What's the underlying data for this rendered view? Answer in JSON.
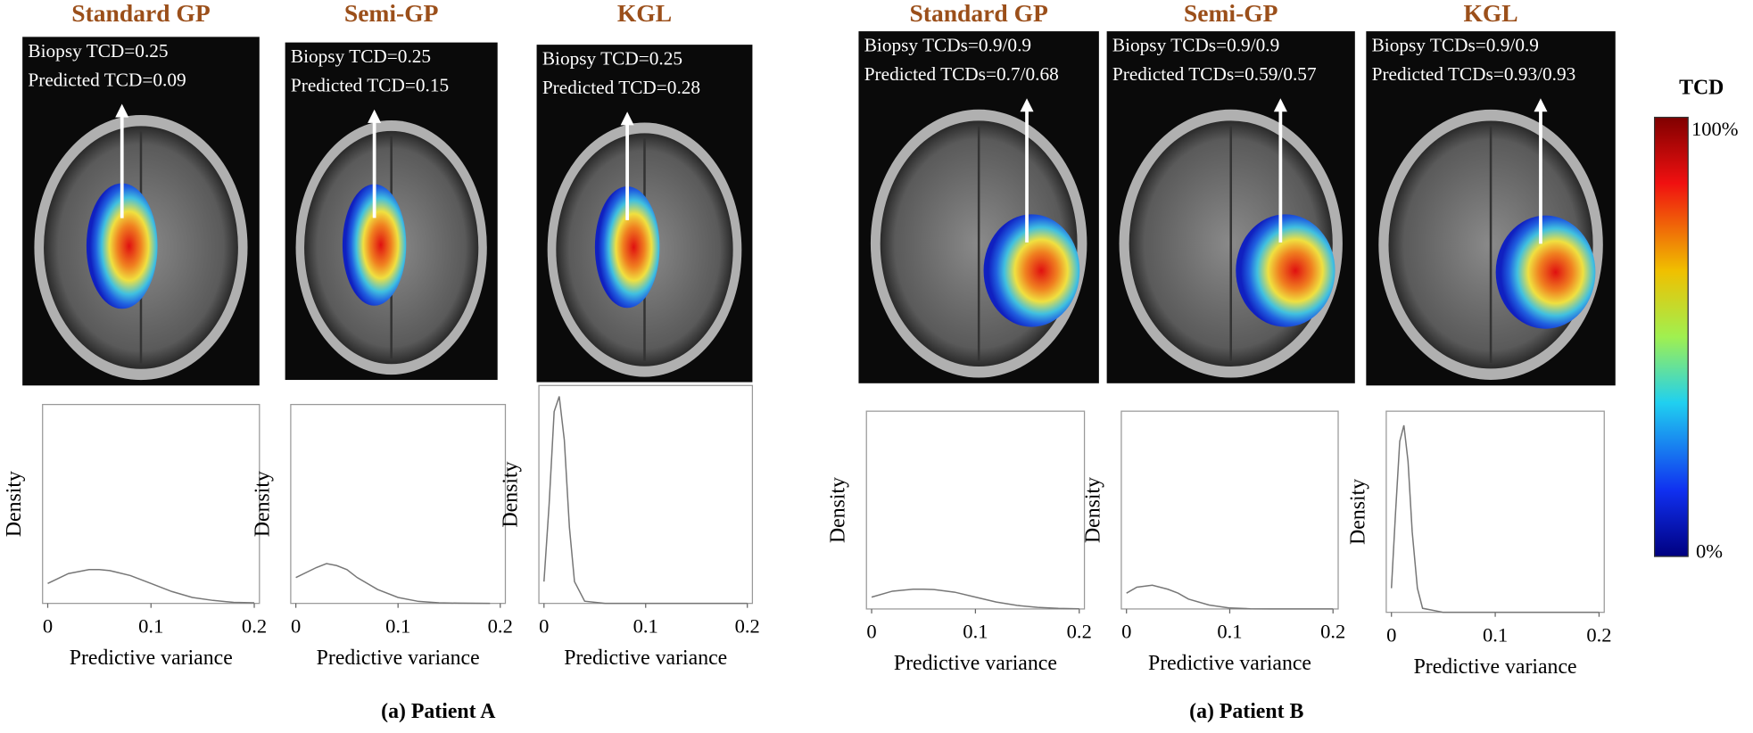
{
  "panels": [
    {
      "title": "Standard GP",
      "lines": [
        "Biopsy  TCD=0.25",
        "Predicted  TCD=0.09"
      ]
    },
    {
      "title": "Semi-GP",
      "lines": [
        "Biopsy  TCD=0.25",
        "Predicted  TCD=0.15"
      ]
    },
    {
      "title": "KGL",
      "lines": [
        "Biopsy  TCD=0.25",
        "Predicted  TCD=0.28"
      ]
    },
    {
      "title": "Standard GP",
      "lines": [
        "Biopsy TCDs=0.9/0.9",
        "Predicted TCDs=0.7/0.68"
      ]
    },
    {
      "title": "Semi-GP",
      "lines": [
        "Biopsy TCDs=0.9/0.9",
        "Predicted TCDs=0.59/0.57"
      ]
    },
    {
      "title": "KGL",
      "lines": [
        "Biopsy TCDs=0.9/0.9",
        "Predicted TCDs=0.93/0.93"
      ]
    }
  ],
  "captions": [
    "(a) Patient A",
    "(a) Patient B"
  ],
  "colorbar": {
    "title": "TCD",
    "max_label": "100%",
    "min_label": "0%"
  },
  "chart_data": [
    {
      "type": "line",
      "x_label": "Predictive variance",
      "y_label": "Density",
      "color": "#777777",
      "x": [
        0,
        0.02,
        0.04,
        0.05,
        0.06,
        0.08,
        0.1,
        0.12,
        0.14,
        0.16,
        0.18,
        0.2
      ],
      "values": [
        0.1,
        0.15,
        0.17,
        0.17,
        0.165,
        0.14,
        0.1,
        0.06,
        0.03,
        0.015,
        0.005,
        0.003
      ],
      "xlim": [
        -0.005,
        0.205
      ],
      "ylim": [
        0,
        1
      ],
      "xticks": [
        0,
        0.1,
        0.2
      ]
    },
    {
      "type": "line",
      "x_label": "Predictive variance",
      "y_label": "Density",
      "color": "#777777",
      "x": [
        0,
        0.02,
        0.03,
        0.04,
        0.05,
        0.06,
        0.08,
        0.1,
        0.12,
        0.14,
        0.16,
        0.19
      ],
      "values": [
        0.13,
        0.18,
        0.2,
        0.19,
        0.17,
        0.13,
        0.07,
        0.03,
        0.01,
        0.003,
        0.001,
        0
      ],
      "xlim": [
        -0.005,
        0.205
      ],
      "ylim": [
        0,
        1
      ],
      "xticks": [
        0,
        0.1,
        0.2
      ]
    },
    {
      "type": "line",
      "x_label": "Predictive variance",
      "y_label": "Density",
      "color": "#777777",
      "x": [
        0,
        0.005,
        0.01,
        0.015,
        0.02,
        0.025,
        0.03,
        0.04,
        0.06,
        0.1,
        0.15,
        0.2
      ],
      "values": [
        0.1,
        0.45,
        0.88,
        0.95,
        0.75,
        0.35,
        0.1,
        0.01,
        0,
        0,
        0,
        0
      ],
      "xlim": [
        -0.005,
        0.205
      ],
      "ylim": [
        0,
        1
      ],
      "xticks": [
        0,
        0.1,
        0.2
      ]
    },
    {
      "type": "line",
      "x_label": "Predictive variance",
      "y_label": "Density",
      "color": "#777777",
      "x": [
        0,
        0.02,
        0.04,
        0.05,
        0.06,
        0.08,
        0.1,
        0.12,
        0.14,
        0.16,
        0.18,
        0.2
      ],
      "values": [
        0.06,
        0.09,
        0.1,
        0.1,
        0.098,
        0.085,
        0.06,
        0.035,
        0.018,
        0.008,
        0.003,
        0.001
      ],
      "xlim": [
        -0.005,
        0.205
      ],
      "ylim": [
        0,
        1
      ],
      "xticks": [
        0,
        0.1,
        0.2
      ]
    },
    {
      "type": "line",
      "x_label": "Predictive variance",
      "y_label": "Density",
      "color": "#777777",
      "x": [
        0,
        0.01,
        0.025,
        0.04,
        0.05,
        0.06,
        0.08,
        0.1,
        0.12,
        0.14,
        0.16,
        0.2
      ],
      "values": [
        0.08,
        0.11,
        0.12,
        0.1,
        0.08,
        0.05,
        0.02,
        0.005,
        0.001,
        0,
        0,
        0
      ],
      "xlim": [
        -0.005,
        0.205
      ],
      "ylim": [
        0,
        1
      ],
      "xticks": [
        0,
        0.1,
        0.2
      ]
    },
    {
      "type": "line",
      "x_label": "Predictive variance",
      "y_label": "Density",
      "color": "#777777",
      "x": [
        0,
        0.004,
        0.008,
        0.012,
        0.016,
        0.02,
        0.025,
        0.03,
        0.05,
        0.1,
        0.15,
        0.2
      ],
      "values": [
        0.12,
        0.5,
        0.85,
        0.93,
        0.75,
        0.4,
        0.12,
        0.02,
        0,
        0,
        0,
        0
      ],
      "xlim": [
        -0.005,
        0.205
      ],
      "ylim": [
        0,
        1
      ],
      "xticks": [
        0,
        0.1,
        0.2
      ]
    }
  ]
}
